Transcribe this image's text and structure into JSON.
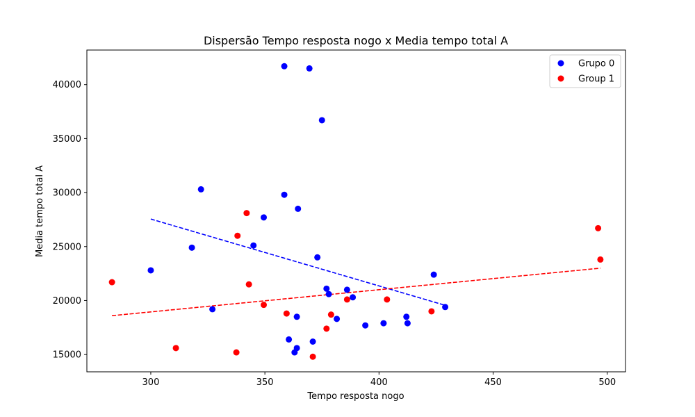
{
  "chart_data": {
    "type": "scatter",
    "title": "Dispersão Tempo resposta nogo x Media tempo total A",
    "xlabel": "Tempo resposta nogo",
    "ylabel": "Media tempo total A",
    "xlim": [
      272,
      508
    ],
    "ylim": [
      13400,
      43200
    ],
    "xticks": [
      300,
      350,
      400,
      450,
      500
    ],
    "yticks": [
      15000,
      20000,
      25000,
      30000,
      35000,
      40000
    ],
    "grid": false,
    "legend_position": "top-right",
    "series": [
      {
        "name": "Grupo 0",
        "color": "#0000ff",
        "points": [
          [
            358.5,
            41700
          ],
          [
            369.5,
            41500
          ],
          [
            375,
            36700
          ],
          [
            322,
            30300
          ],
          [
            358.5,
            29800
          ],
          [
            364.5,
            28500
          ],
          [
            349.5,
            27700
          ],
          [
            318,
            24900
          ],
          [
            345,
            25100
          ],
          [
            373,
            24000
          ],
          [
            300,
            22800
          ],
          [
            424,
            22400
          ],
          [
            377,
            21100
          ],
          [
            386,
            21000
          ],
          [
            378,
            20600
          ],
          [
            388.5,
            20300
          ],
          [
            429,
            19400
          ],
          [
            327,
            19200
          ],
          [
            364,
            18500
          ],
          [
            381.5,
            18300
          ],
          [
            412,
            18500
          ],
          [
            412.5,
            17900
          ],
          [
            402,
            17900
          ],
          [
            394,
            17700
          ],
          [
            360.5,
            16400
          ],
          [
            371,
            16200
          ],
          [
            364,
            15600
          ],
          [
            363,
            15200
          ]
        ],
        "trendline": [
          [
            300,
            27550
          ],
          [
            429,
            19560
          ]
        ]
      },
      {
        "name": "Group 1",
        "color": "#ff0000",
        "points": [
          [
            342,
            28100
          ],
          [
            338,
            26000
          ],
          [
            496,
            26700
          ],
          [
            497,
            23800
          ],
          [
            283,
            21700
          ],
          [
            343,
            21500
          ],
          [
            403.5,
            20100
          ],
          [
            386,
            20100
          ],
          [
            349.5,
            19600
          ],
          [
            423,
            19000
          ],
          [
            359.5,
            18800
          ],
          [
            379,
            18700
          ],
          [
            377,
            17400
          ],
          [
            311,
            15600
          ],
          [
            337.5,
            15200
          ],
          [
            371,
            14800
          ]
        ],
        "trendline": [
          [
            283,
            18600
          ],
          [
            497,
            23000
          ]
        ]
      }
    ]
  }
}
